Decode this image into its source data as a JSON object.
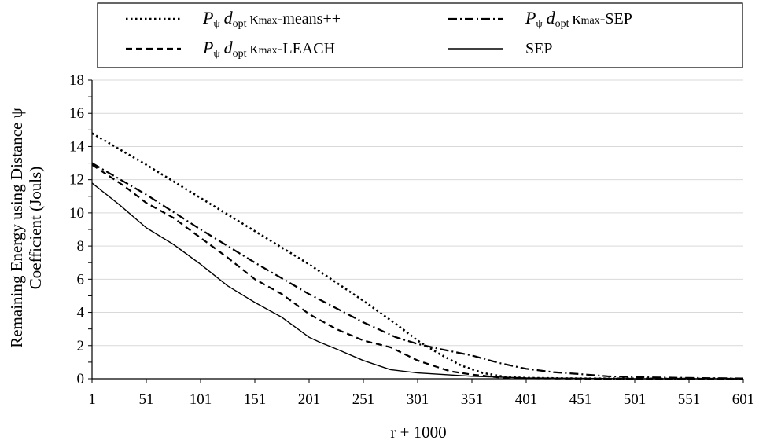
{
  "chart_data": {
    "type": "line",
    "title": "",
    "xlabel": "r + 1000",
    "ylabel_lines": [
      "Remaining Energy using Distance ψ",
      "Coefficient (Jouls)"
    ],
    "xlim": [
      1,
      601
    ],
    "ylim": [
      0,
      18
    ],
    "x_ticks": [
      "1",
      "51",
      "101",
      "151",
      "201",
      "251",
      "301",
      "351",
      "401",
      "451",
      "501",
      "551",
      "601"
    ],
    "y_ticks": [
      "0",
      "2",
      "4",
      "6",
      "8",
      "10",
      "12",
      "14",
      "16",
      "18"
    ],
    "grid": "horizontal",
    "legend": {
      "placement": "top",
      "entries": [
        {
          "series": 0,
          "prefix": "P",
          "sub1": "ψ",
          "mid": "d",
          "sub2": "opt",
          "kappa": "κ",
          "sub3": "max",
          "suffix": "-means++"
        },
        {
          "series": 2,
          "prefix": "P",
          "sub1": "ψ",
          "mid": "d",
          "sub2": "opt",
          "kappa": "κ",
          "sub3": "max",
          "suffix": "-SEP"
        },
        {
          "series": 1,
          "prefix": "P",
          "sub1": "ψ",
          "mid": "d",
          "sub2": "opt",
          "kappa": "κ",
          "sub3": "max",
          "suffix": "-LEACH"
        },
        {
          "series": 3,
          "prefix": "",
          "sub1": "",
          "mid": "",
          "sub2": "",
          "kappa": "",
          "sub3": "",
          "suffix": "SEP"
        }
      ]
    },
    "series": [
      {
        "name": "Pψ dopt κmax-means++",
        "style": "dotted",
        "x": [
          1,
          51,
          101,
          151,
          201,
          251,
          281,
          301,
          321,
          341,
          361,
          381,
          401,
          451,
          501,
          551,
          601
        ],
        "y": [
          14.8,
          12.9,
          10.9,
          8.9,
          6.9,
          4.7,
          3.3,
          2.3,
          1.5,
          0.8,
          0.35,
          0.12,
          0.05,
          0.02,
          0.01,
          0.0,
          0.0
        ]
      },
      {
        "name": "Pψ dopt κmax-LEACH",
        "style": "dashed",
        "x": [
          1,
          31,
          51,
          76,
          101,
          126,
          151,
          176,
          201,
          226,
          251,
          276,
          301,
          331,
          351,
          376,
          401,
          451,
          501,
          601
        ],
        "y": [
          12.9,
          11.6,
          10.6,
          9.7,
          8.5,
          7.3,
          6.0,
          5.1,
          3.9,
          3.0,
          2.3,
          1.9,
          1.1,
          0.45,
          0.25,
          0.08,
          0.03,
          0.01,
          0.0,
          0.0
        ]
      },
      {
        "name": "Pψ dopt κmax-SEP",
        "style": "dashdot",
        "x": [
          1,
          51,
          101,
          151,
          201,
          251,
          281,
          301,
          321,
          351,
          376,
          401,
          426,
          451,
          476,
          501,
          551,
          601
        ],
        "y": [
          13.0,
          11.1,
          9.0,
          7.0,
          5.1,
          3.4,
          2.5,
          2.1,
          1.8,
          1.4,
          0.95,
          0.6,
          0.4,
          0.28,
          0.15,
          0.1,
          0.05,
          0.02
        ]
      },
      {
        "name": "SEP",
        "style": "solid",
        "x": [
          1,
          26,
          51,
          76,
          101,
          126,
          151,
          176,
          201,
          211,
          226,
          251,
          276,
          301,
          351,
          401,
          501,
          601
        ],
        "y": [
          11.8,
          10.5,
          9.1,
          8.1,
          6.9,
          5.6,
          4.6,
          3.7,
          2.5,
          2.2,
          1.8,
          1.1,
          0.55,
          0.35,
          0.15,
          0.05,
          0.0,
          0.0
        ]
      }
    ]
  }
}
